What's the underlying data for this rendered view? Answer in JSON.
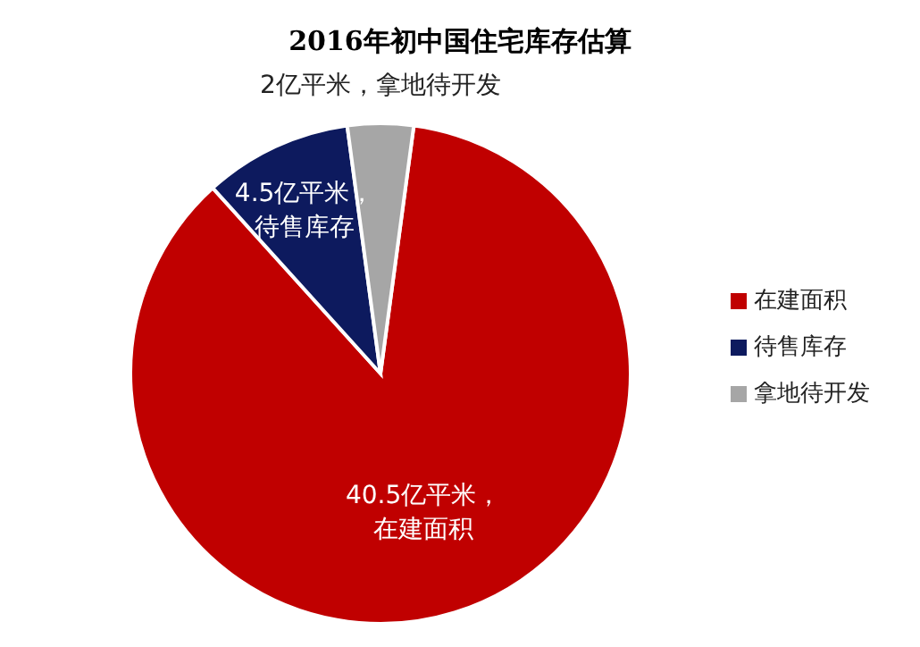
{
  "chart_data": {
    "type": "pie",
    "title": "2016年初中国住宅库存估算",
    "categories": [
      "在建面积",
      "待售库存",
      "拿地待开发"
    ],
    "values": [
      40.5,
      4.5,
      2
    ],
    "colors": [
      "#c00000",
      "#0d1a5e",
      "#a6a6a6"
    ],
    "value_labels": [
      "40.5亿平米，在建面积",
      "4.5亿平米，待售库存",
      "2亿平米，拿地待开发"
    ],
    "legend": "right"
  }
}
